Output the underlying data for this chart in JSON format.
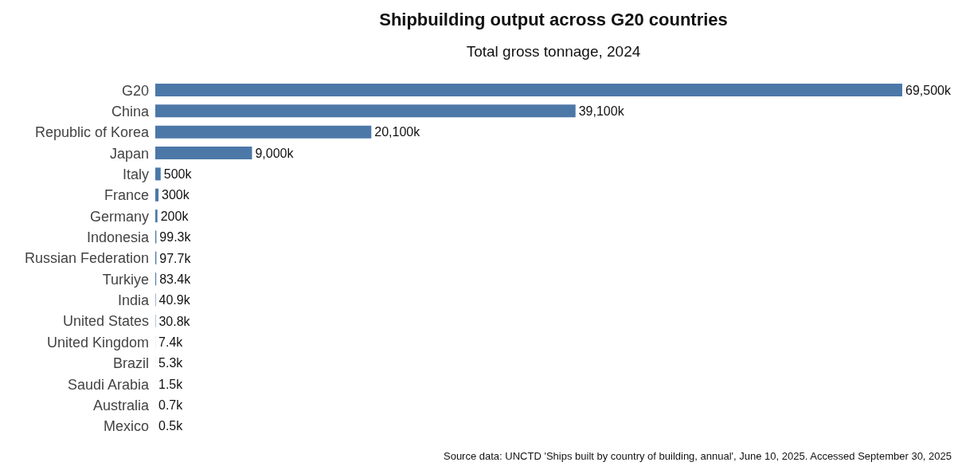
{
  "chart_data": {
    "type": "bar",
    "orientation": "horizontal",
    "title": "Shipbuilding output across G20 countries",
    "subtitle": "Total gross tonnage, 2024",
    "categories": [
      "G20",
      "China",
      "Republic of Korea",
      "Japan",
      "Italy",
      "France",
      "Germany",
      "Indonesia",
      "Russian Federation",
      "Turkiye",
      "India",
      "United States",
      "United Kingdom",
      "Brazil",
      "Saudi Arabia",
      "Australia",
      "Mexico"
    ],
    "values": [
      69500,
      39100,
      20100,
      9000,
      500,
      300,
      200,
      99.3,
      97.7,
      83.4,
      40.9,
      30.8,
      7.4,
      5.3,
      1.5,
      0.7,
      0.5
    ],
    "value_labels": [
      "69,500k",
      "39,100k",
      "20,100k",
      "9,000k",
      "500k",
      "300k",
      "200k",
      "99.3k",
      "97.7k",
      "83.4k",
      "40.9k",
      "30.8k",
      "7.4k",
      "5.3k",
      "1.5k",
      "0.7k",
      "0.5k"
    ],
    "color": "#4c78a8",
    "grid": false,
    "legend": false,
    "annotations": [
      "Source data: UNCTD 'Ships built by country of building, annual', June 10, 2025. Accessed September 30, 2025"
    ]
  }
}
